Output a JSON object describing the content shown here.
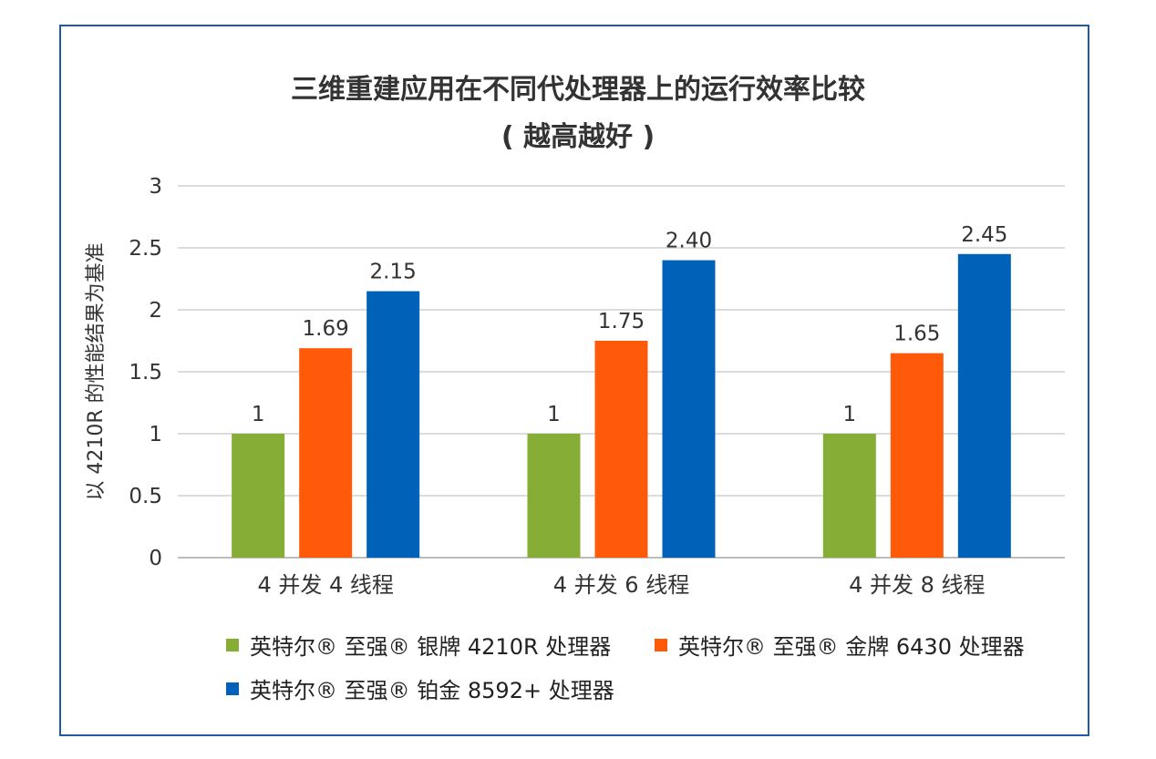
{
  "chart_data": {
    "type": "bar",
    "title": "三维重建应用在不同代处理器上的运行效率比较",
    "subtitle": "( 越高越好 )",
    "ylabel": "以 4210R 的性能结果为基准",
    "xlabel": "",
    "categories": [
      "4 并发 4 线程",
      "4 并发 6 线程",
      "4 并发 8 线程"
    ],
    "yticks": [
      "0",
      "0.5",
      "1",
      "1.5",
      "2",
      "2.5",
      "3"
    ],
    "ylim": [
      0,
      3
    ],
    "grid": true,
    "legend_position": "bottom",
    "series": [
      {
        "name": "英特尔® 至强® 银牌 4210R 处理器",
        "values": [
          1,
          1,
          1
        ],
        "labels": [
          "1",
          "1",
          "1"
        ],
        "color": "#86ad35"
      },
      {
        "name": "英特尔® 至强® 金牌 6430 处理器",
        "values": [
          1.69,
          1.75,
          1.65
        ],
        "labels": [
          "1.69",
          "1.75",
          "1.65"
        ],
        "color": "#ff5a0a"
      },
      {
        "name": "英特尔® 至强® 铂金 8592+ 处理器",
        "values": [
          2.15,
          2.4,
          2.45
        ],
        "labels": [
          "2.15",
          "2.40",
          "2.45"
        ],
        "color": "#0061b8"
      }
    ]
  }
}
